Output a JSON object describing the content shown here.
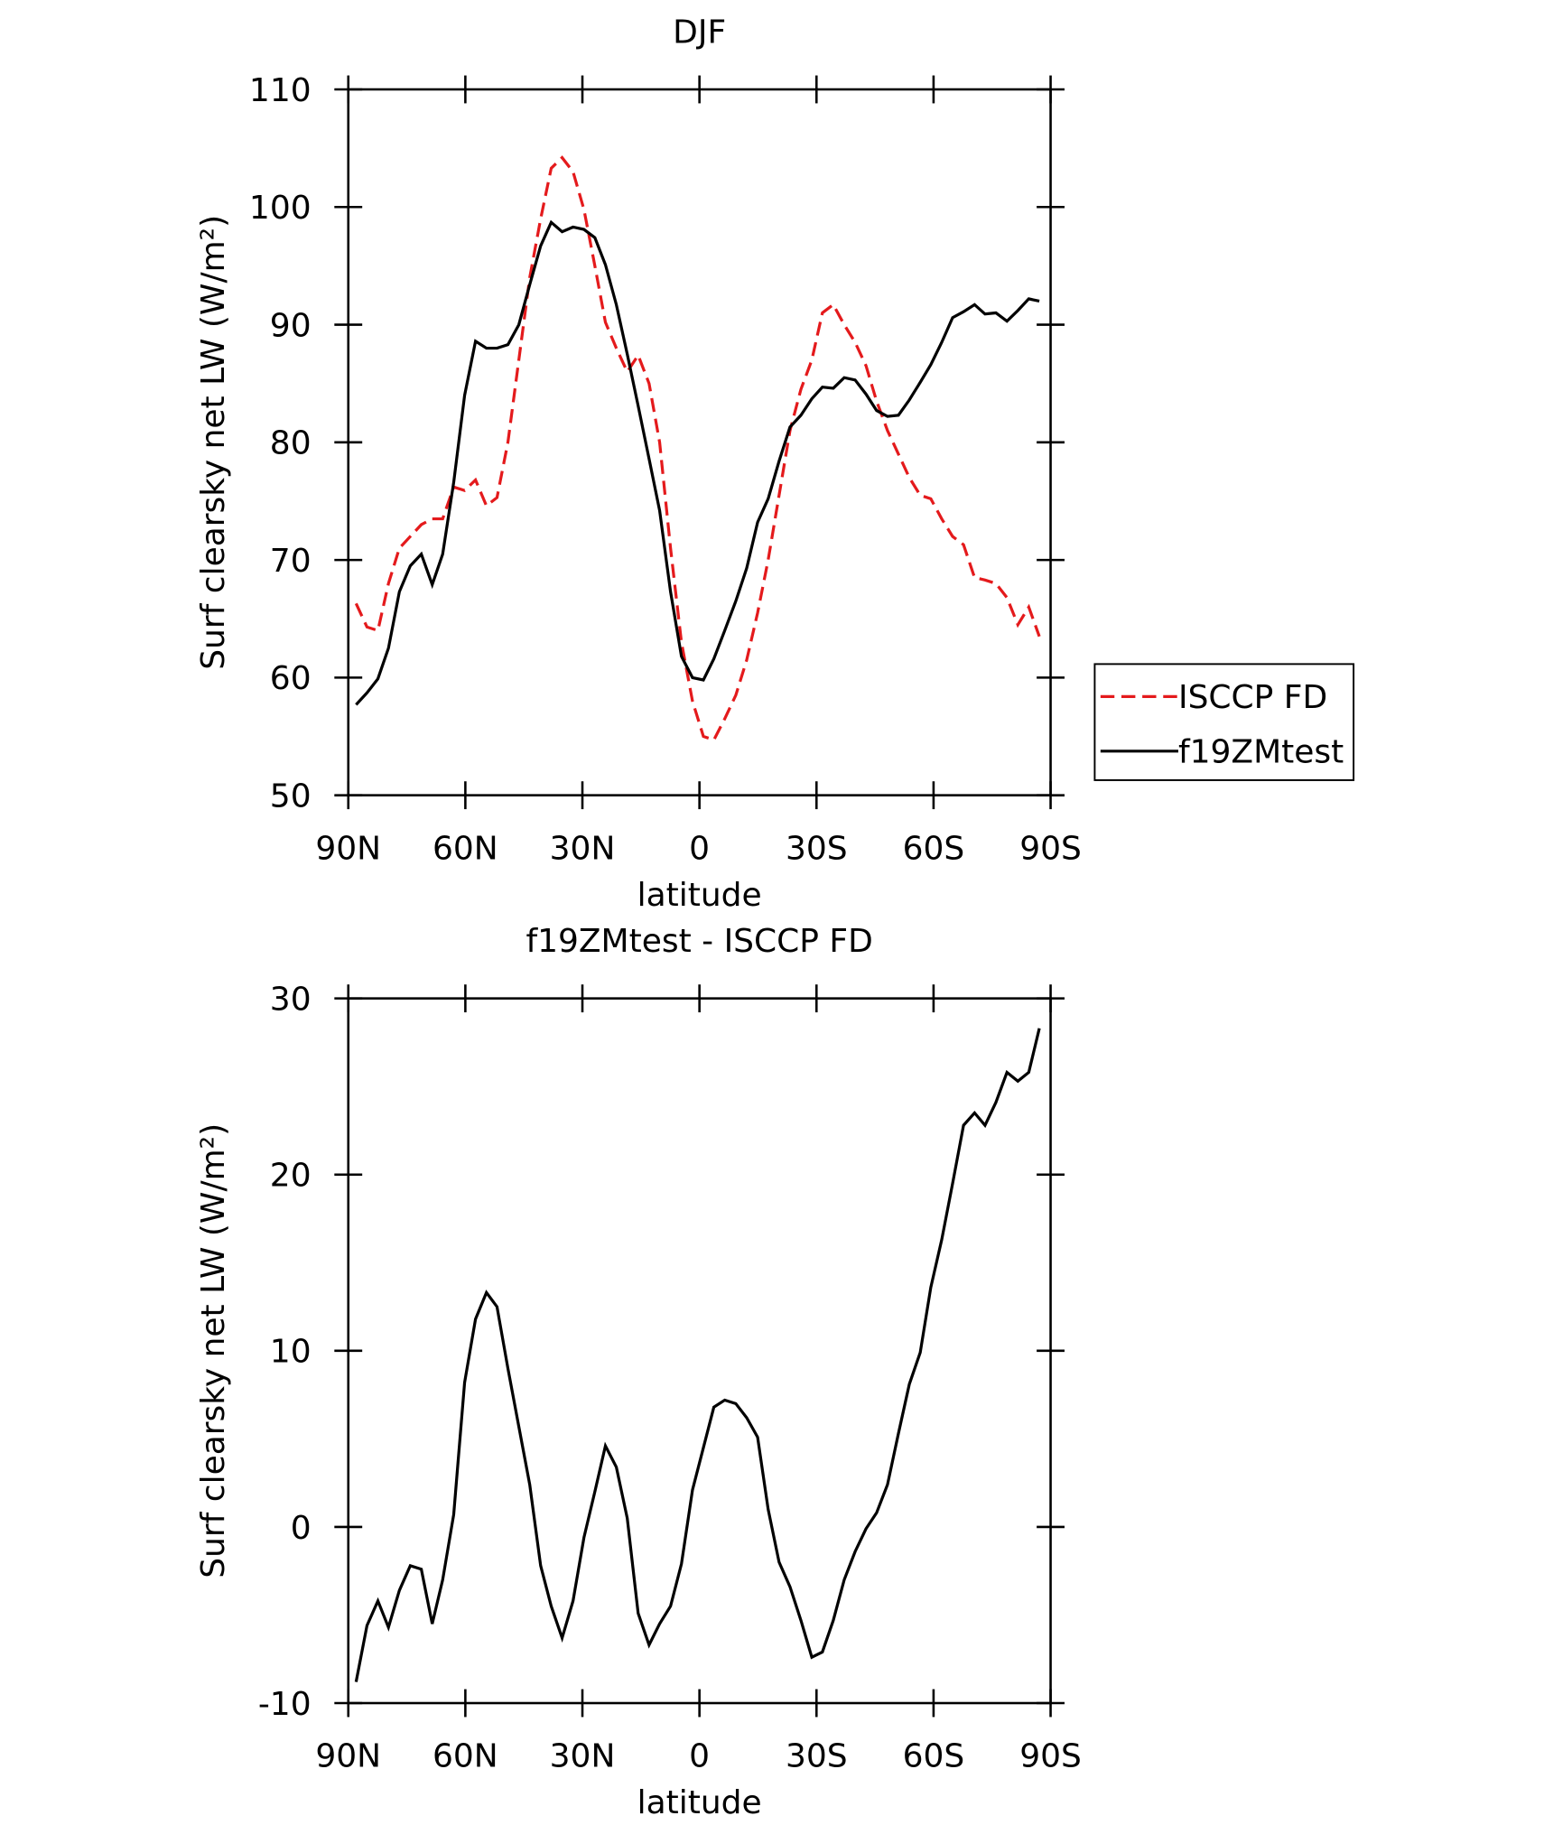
{
  "chart_data": [
    {
      "type": "line",
      "title": "DJF",
      "xlabel": "latitude",
      "ylabel": "Surf clearsky net LW (W/m²)",
      "x": [
        88,
        85.2,
        82.4,
        79.7,
        76.9,
        74.1,
        71.3,
        68.5,
        65.8,
        63,
        60.2,
        57.4,
        54.6,
        51.9,
        49.1,
        46.3,
        43.5,
        40.7,
        38,
        35.2,
        32.4,
        29.6,
        26.8,
        24.1,
        21.3,
        18.5,
        15.7,
        12.9,
        10.2,
        7.4,
        4.6,
        1.8,
        -1,
        -3.7,
        -6.5,
        -9.3,
        -12.1,
        -14.9,
        -17.6,
        -20.4,
        -23.2,
        -26,
        -28.8,
        -31.5,
        -34.3,
        -37.1,
        -39.9,
        -42.7,
        -45.4,
        -48.2,
        -51,
        -53.8,
        -56.6,
        -59.3,
        -62.1,
        -64.9,
        -67.7,
        -70.5,
        -73.2,
        -76,
        -78.8,
        -81.6,
        -84.4,
        -87.1
      ],
      "series": [
        {
          "name": "ISCCP FD",
          "color": "#e41a1c",
          "line_style": "dashed",
          "values": [
            66.3,
            64.3,
            64,
            68,
            71,
            72,
            73,
            73.5,
            73.5,
            76.2,
            75.9,
            76.8,
            74.6,
            75.3,
            80,
            87,
            94,
            99,
            103.3,
            104.2,
            103,
            99.8,
            95,
            90.2,
            88,
            86,
            87.4,
            85,
            80,
            71,
            63,
            58,
            55,
            54.7,
            56.5,
            58.5,
            61.5,
            65.5,
            70,
            75.5,
            81,
            84.5,
            87,
            91,
            91.7,
            90,
            88.5,
            86.5,
            83.5,
            81,
            79,
            77,
            75.5,
            75.2,
            73.5,
            72,
            71.3,
            68.5,
            68.3,
            68,
            66.8,
            64.5,
            66,
            63.5
          ]
        },
        {
          "name": "f19ZMtest",
          "color": "#000000",
          "line_style": "solid",
          "values": [
            57.7,
            58.7,
            59.9,
            62.5,
            67.3,
            69.5,
            70.5,
            67.9,
            70.5,
            76.6,
            84,
            88.6,
            88,
            88,
            88.3,
            90,
            93.4,
            96.7,
            98.7,
            97.9,
            98.3,
            98.1,
            97.4,
            95.1,
            91.7,
            87.5,
            83.1,
            78.6,
            74.2,
            67.3,
            61.8,
            60,
            59.8,
            61.6,
            64,
            66.5,
            69.3,
            73.2,
            75.2,
            78.4,
            81.3,
            82.3,
            83.7,
            84.7,
            84.6,
            85.5,
            85.3,
            84.1,
            82.7,
            82.2,
            82.3,
            83.6,
            85.1,
            86.6,
            88.5,
            90.6,
            91.1,
            91.7,
            90.9,
            91,
            90.3,
            91.2,
            92.2,
            92
          ]
        }
      ],
      "xlim": [
        90,
        -90
      ],
      "xticks": [
        {
          "value": 90,
          "label": "90N"
        },
        {
          "value": 60,
          "label": "60N"
        },
        {
          "value": 30,
          "label": "30N"
        },
        0,
        {
          "value": -30,
          "label": "30S"
        },
        {
          "value": -60,
          "label": "60S"
        },
        {
          "value": -90,
          "label": "90S"
        }
      ],
      "ylim": [
        50,
        110
      ],
      "yticks": [
        50,
        60,
        70,
        80,
        90,
        100,
        110
      ],
      "legend": "right"
    },
    {
      "type": "line",
      "title": "f19ZMtest - ISCCP FD",
      "xlabel": "latitude",
      "ylabel": "Surf clearsky net LW (W/m²)",
      "x": [
        88,
        85.2,
        82.4,
        79.7,
        76.9,
        74.1,
        71.3,
        68.5,
        65.8,
        63,
        60.2,
        57.4,
        54.6,
        51.9,
        49.1,
        46.3,
        43.5,
        40.7,
        38,
        35.2,
        32.4,
        29.6,
        26.8,
        24.1,
        21.3,
        18.5,
        15.7,
        12.9,
        10.2,
        7.4,
        4.6,
        1.8,
        -1,
        -3.7,
        -6.5,
        -9.3,
        -12.1,
        -14.9,
        -17.6,
        -20.4,
        -23.2,
        -26,
        -28.8,
        -31.5,
        -34.3,
        -37.1,
        -39.9,
        -42.7,
        -45.4,
        -48.2,
        -51,
        -53.8,
        -56.6,
        -59.3,
        -62.1,
        -64.9,
        -67.7,
        -70.5,
        -73.2,
        -76,
        -78.8,
        -81.6,
        -84.4,
        -87.1
      ],
      "color": "#000000",
      "values": [
        -8.8,
        -5.6,
        -4.2,
        -5.7,
        -3.6,
        -2.2,
        -2.4,
        -5.5,
        -3,
        0.7,
        8.2,
        11.8,
        13.3,
        12.5,
        9,
        5.7,
        2.4,
        -2.2,
        -4.5,
        -6.3,
        -4.2,
        -0.6,
        2,
        4.6,
        3.4,
        0.5,
        -4.9,
        -6.7,
        -5.5,
        -4.5,
        -2.1,
        2.1,
        4.5,
        6.8,
        7.2,
        7,
        6.2,
        5.1,
        1,
        -2,
        -3.4,
        -5.3,
        -7.4,
        -7.1,
        -5.3,
        -3,
        -1.4,
        -0.1,
        0.8,
        2.4,
        5.3,
        8.1,
        9.9,
        13.6,
        16.3,
        19.5,
        22.8,
        23.5,
        22.8,
        24.1,
        25.8,
        25.3,
        25.8,
        28.3
      ],
      "xlim": [
        90,
        -90
      ],
      "xticks": [
        {
          "value": 90,
          "label": "90N"
        },
        {
          "value": 60,
          "label": "60N"
        },
        {
          "value": 30,
          "label": "30N"
        },
        0,
        {
          "value": -30,
          "label": "30S"
        },
        {
          "value": -60,
          "label": "60S"
        },
        {
          "value": -90,
          "label": "90S"
        }
      ],
      "ylim": [
        -10,
        30
      ],
      "yticks": [
        -10,
        0,
        10,
        20,
        30
      ]
    }
  ]
}
